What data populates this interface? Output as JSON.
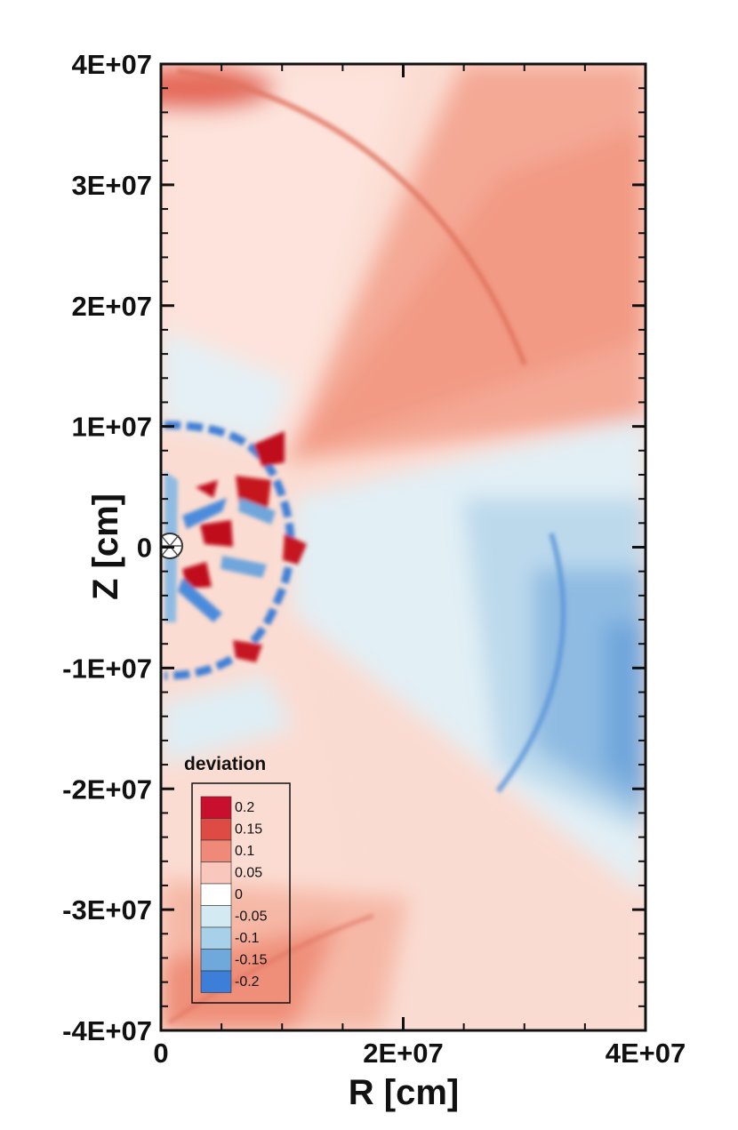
{
  "chart_data": {
    "type": "heatmap",
    "xlabel": "R [cm]",
    "ylabel": "Z [cm]",
    "xlim": [
      0,
      40000000
    ],
    "ylim": [
      -40000000,
      40000000
    ],
    "x_ticks": [
      0,
      20000000,
      40000000
    ],
    "x_tick_labels": [
      "0",
      "2E+07",
      "4E+07"
    ],
    "y_ticks": [
      40000000,
      30000000,
      20000000,
      10000000,
      0,
      -10000000,
      -20000000,
      -30000000,
      -40000000
    ],
    "y_tick_labels": [
      "4E+07",
      "3E+07",
      "2E+07",
      "1E+07",
      "0",
      "-1E+07",
      "-2E+07",
      "-3E+07",
      "-4E+07"
    ],
    "colorbar": {
      "title": "deviation",
      "levels": [
        0.2,
        0.15,
        0.1,
        0.05,
        0,
        -0.05,
        -0.1,
        -0.15,
        -0.2
      ],
      "level_labels": [
        "0.2",
        "0.15",
        "0.1",
        "0.05",
        "0",
        "-0.05",
        "-0.1",
        "-0.15",
        "-0.2"
      ],
      "colors": [
        "#c8102e",
        "#de4a44",
        "#ef8a78",
        "#f9c7bb",
        "#ffffff",
        "#d3eaf2",
        "#a6d1e8",
        "#6fa9dc",
        "#3c7ed8"
      ],
      "placement": "bottom-left"
    },
    "colormap": {
      "positive": "#c8102e",
      "neutral": "#ffffff",
      "negative": "#3c7ed8"
    }
  }
}
